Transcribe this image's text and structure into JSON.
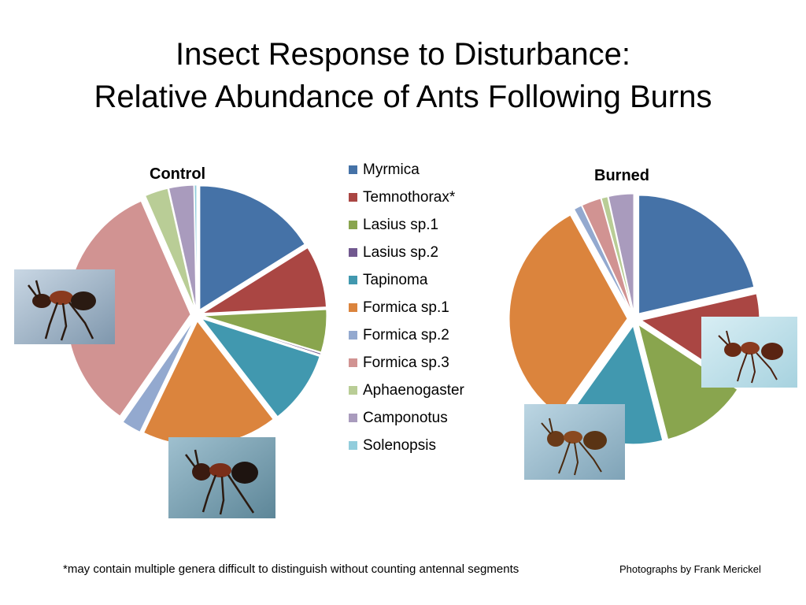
{
  "slide": {
    "title_line1": "Insect Response to Disturbance:",
    "title_line2": "Relative Abundance of Ants Following Burns",
    "footnote": "*may contain multiple genera difficult to distinguish without counting antennal segments",
    "credit": "Photographs by Frank Merickel"
  },
  "chart_data": [
    {
      "type": "pie",
      "title": "Control",
      "exploded": true,
      "legend_position": "between charts",
      "categories": [
        "Myrmica",
        "Temnothorax*",
        "Lasius sp.1",
        "Lasius sp.2",
        "Tapinoma",
        "Formica sp.1",
        "Formica sp.2",
        "Formica sp.3",
        "Aphaenogaster",
        "Camponotus",
        "Solenopsis"
      ],
      "values": [
        16,
        8,
        5.5,
        0.2,
        9.5,
        17.5,
        2.5,
        33.5,
        3,
        3.2,
        0.3
      ],
      "colors": [
        "#4572a7",
        "#aa4643",
        "#89a54e",
        "#71588f",
        "#4198af",
        "#db843d",
        "#93a9cf",
        "#d19392",
        "#b9cd96",
        "#a99bbd",
        "#92cddc"
      ]
    },
    {
      "type": "pie",
      "title": "Burned",
      "exploded": true,
      "legend_position": "between charts",
      "categories": [
        "Myrmica",
        "Temnothorax*",
        "Lasius sp.1",
        "Lasius sp.2",
        "Tapinoma",
        "Formica sp.1",
        "Formica sp.2",
        "Formica sp.3",
        "Aphaenogaster",
        "Camponotus",
        "Solenopsis"
      ],
      "values": [
        20,
        12,
        11,
        0,
        13,
        30,
        1,
        2.5,
        0.8,
        3.2,
        0
      ],
      "colors": [
        "#4572a7",
        "#aa4643",
        "#89a54e",
        "#71588f",
        "#4198af",
        "#db843d",
        "#93a9cf",
        "#d19392",
        "#b9cd96",
        "#a99bbd",
        "#92cddc"
      ]
    }
  ],
  "legend": [
    {
      "label": "Myrmica",
      "color": "#4572a7"
    },
    {
      "label": "Temnothorax*",
      "color": "#aa4643"
    },
    {
      "label": "Lasius sp.1",
      "color": "#89a54e"
    },
    {
      "label": "Lasius sp.2",
      "color": "#71588f"
    },
    {
      "label": "Tapinoma",
      "color": "#4198af"
    },
    {
      "label": "Formica sp.1",
      "color": "#db843d"
    },
    {
      "label": "Formica sp.2",
      "color": "#93a9cf"
    },
    {
      "label": "Formica sp.3",
      "color": "#d19392"
    },
    {
      "label": "Aphaenogaster",
      "color": "#b9cd96"
    },
    {
      "label": "Camponotus",
      "color": "#a99bbd"
    },
    {
      "label": "Solenopsis",
      "color": "#92cddc"
    }
  ]
}
